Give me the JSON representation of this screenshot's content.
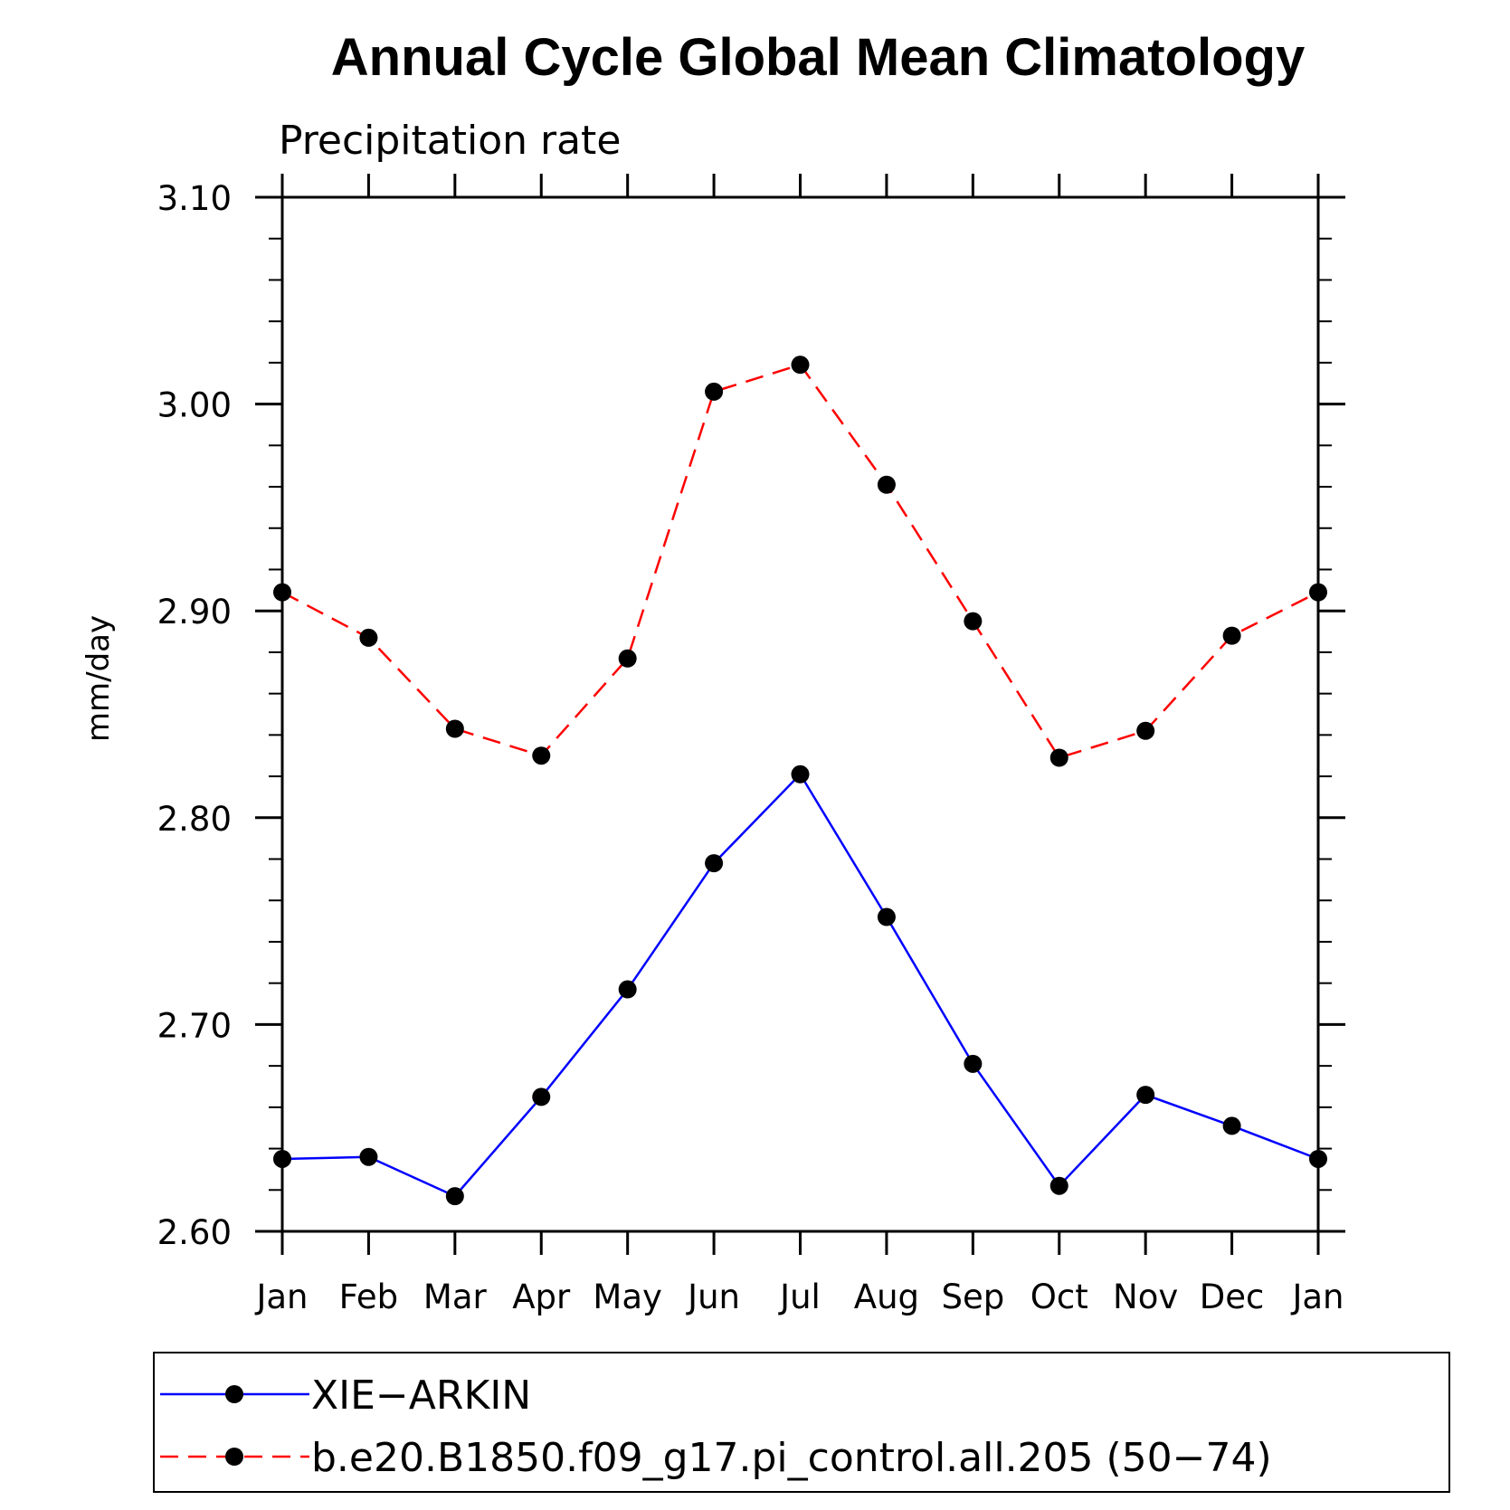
{
  "chart_data": {
    "type": "line",
    "title": "Annual Cycle Global Mean Climatology",
    "subtitle": "Precipitation rate",
    "ylabel": "mm/day",
    "xlabel": "",
    "categories": [
      "Jan",
      "Feb",
      "Mar",
      "Apr",
      "May",
      "Jun",
      "Jul",
      "Aug",
      "Sep",
      "Oct",
      "Nov",
      "Dec",
      "Jan"
    ],
    "ylim": [
      2.6,
      3.1
    ],
    "yticks": [
      "2.60",
      "2.70",
      "2.80",
      "2.90",
      "3.00",
      "3.10"
    ],
    "series": [
      {
        "name": "XIE−ARKIN",
        "color": "#0000ff",
        "dash": "solid",
        "values": [
          2.635,
          2.636,
          2.617,
          2.665,
          2.717,
          2.778,
          2.821,
          2.752,
          2.681,
          2.622,
          2.666,
          2.651,
          2.635
        ]
      },
      {
        "name": "b.e20.B1850.f09_g17.pi_control.all.205 (50−74)",
        "color": "#ff0000",
        "dash": "dashed",
        "values": [
          2.909,
          2.887,
          2.843,
          2.83,
          2.877,
          3.006,
          3.019,
          2.961,
          2.895,
          2.829,
          2.842,
          2.888,
          2.909
        ]
      }
    ],
    "marker_color": "#000000",
    "legend_position": "bottom",
    "grid": false
  }
}
